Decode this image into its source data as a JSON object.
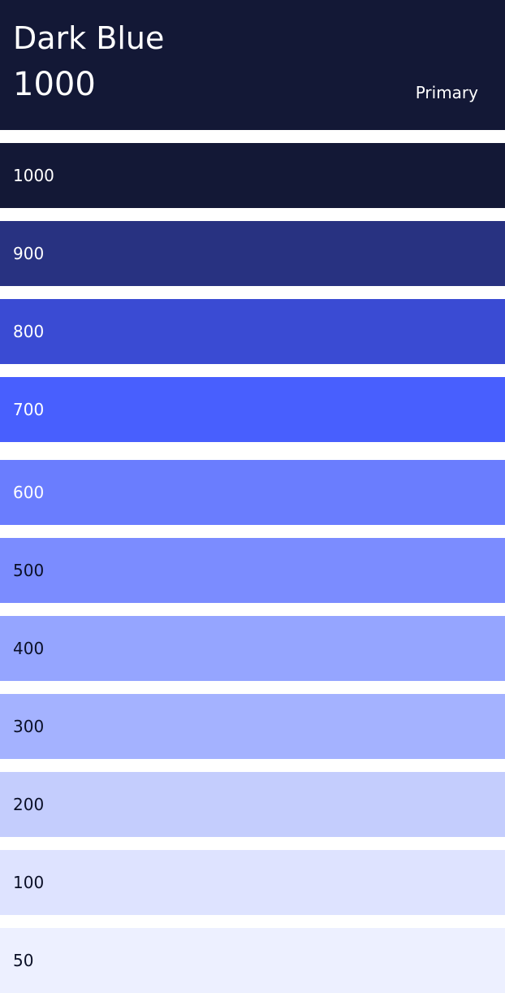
{
  "header": {
    "title": "Dark Blue",
    "shade": "1000",
    "role": "Primary",
    "background": "#131836",
    "text_color": "#ffffff"
  },
  "swatches": [
    {
      "label": "1000",
      "color": "#131836",
      "text_color": "#ffffff"
    },
    {
      "label": "900",
      "color": "#283281",
      "text_color": "#ffffff"
    },
    {
      "label": "800",
      "color": "#3a4bd3",
      "text_color": "#ffffff"
    },
    {
      "label": "700",
      "color": "#485ffe",
      "text_color": "#ffffff"
    },
    {
      "label": "600",
      "color": "#6a7dfe",
      "text_color": "#ffffff"
    },
    {
      "label": "500",
      "color": "#7b8cff",
      "text_color": "#0a0f26"
    },
    {
      "label": "400",
      "color": "#95a5ff",
      "text_color": "#0a0f26"
    },
    {
      "label": "300",
      "color": "#a4b2ff",
      "text_color": "#0a0f26"
    },
    {
      "label": "200",
      "color": "#c4cdfd",
      "text_color": "#0a0f26"
    },
    {
      "label": "100",
      "color": "#dee3ff",
      "text_color": "#0a0f26"
    },
    {
      "label": "50",
      "color": "#edf0ff",
      "text_color": "#0a0f26"
    }
  ]
}
